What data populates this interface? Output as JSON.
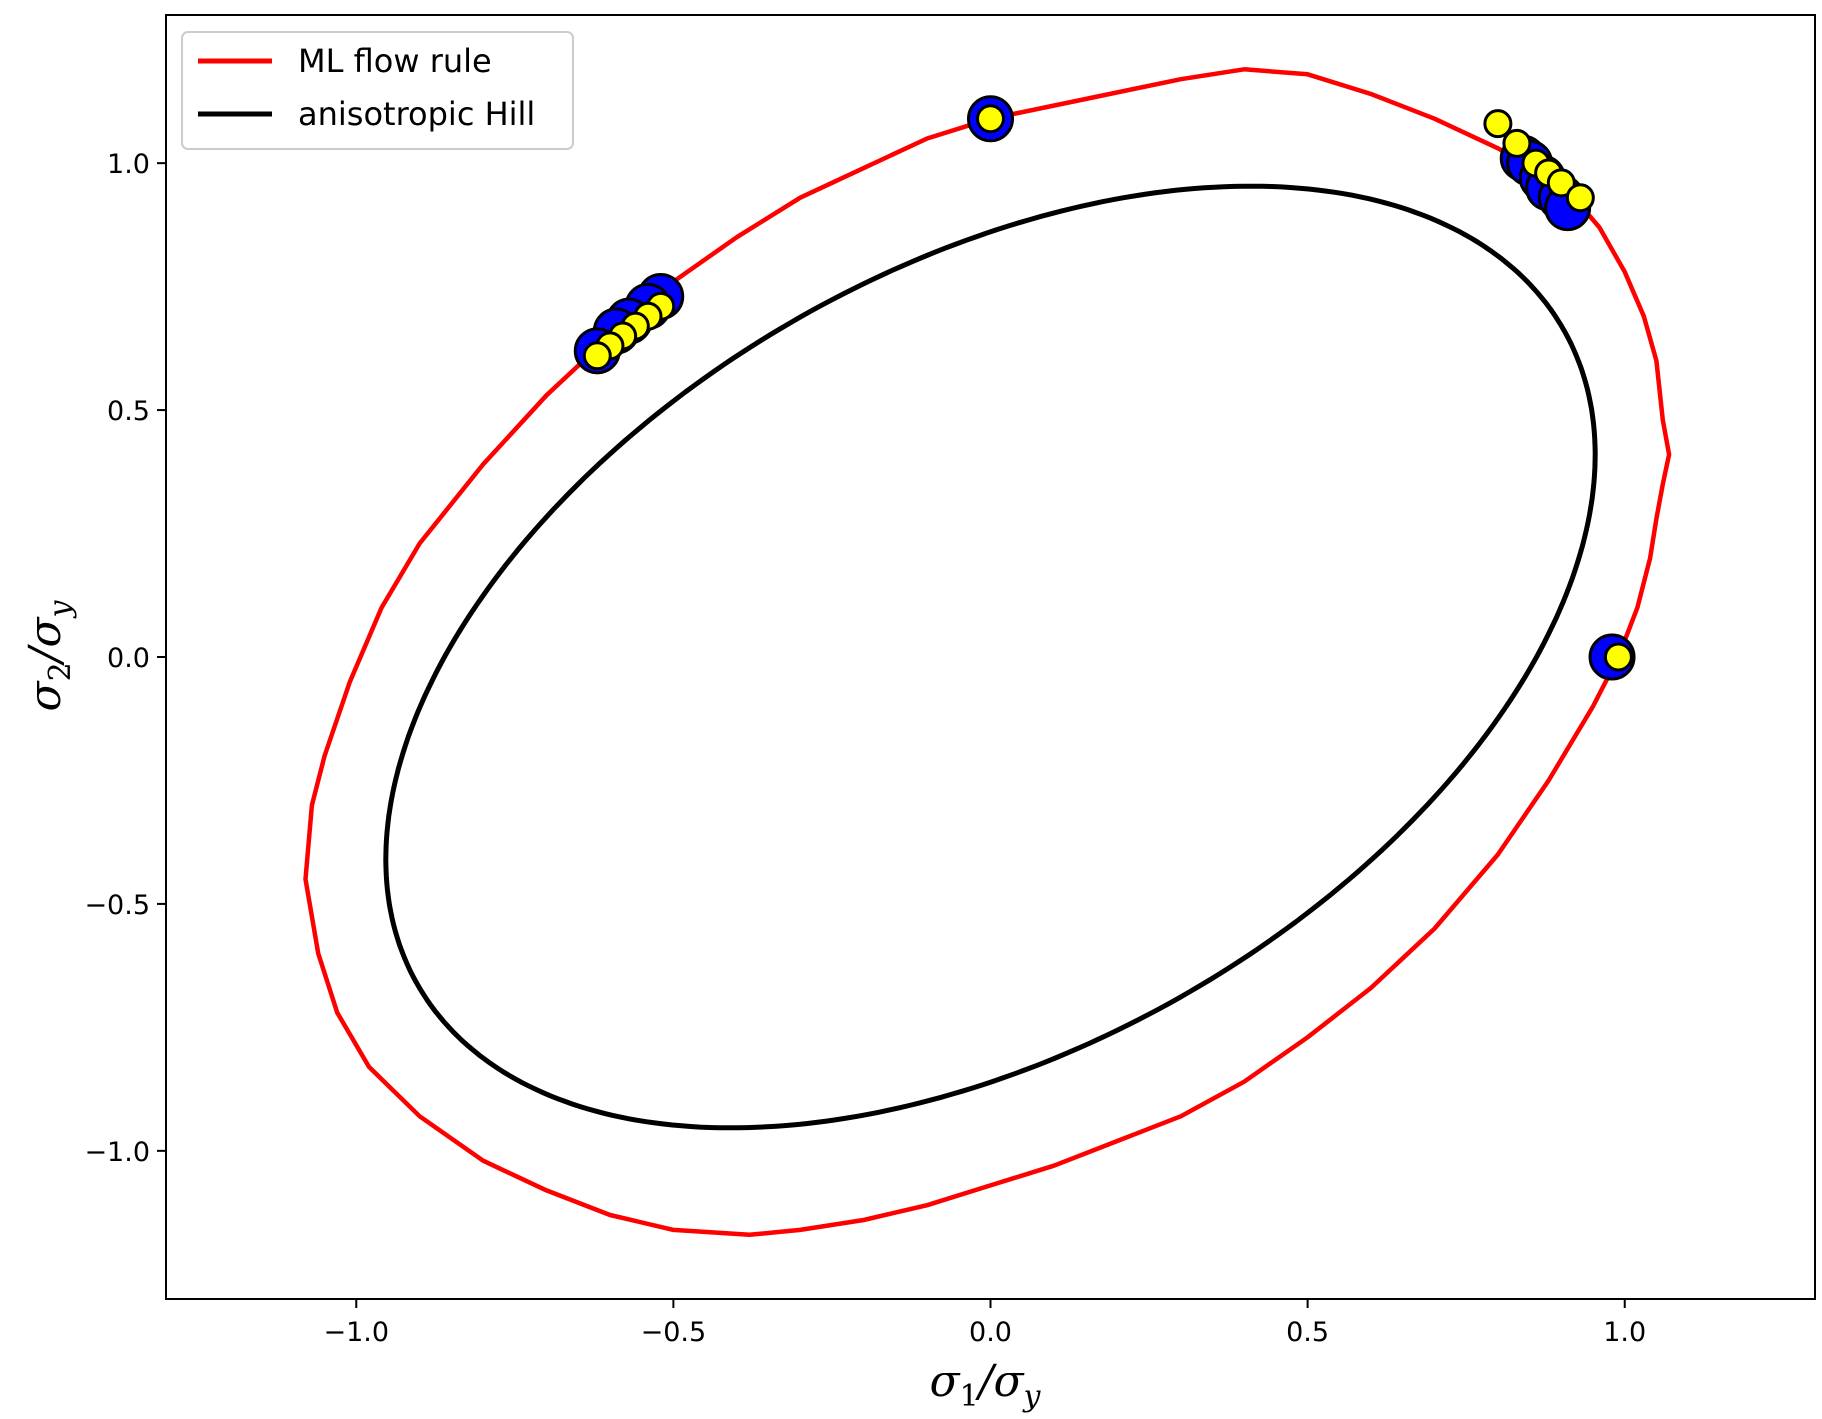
{
  "chart_data": {
    "type": "line",
    "xlabel": {
      "base": "σ",
      "sub": "1",
      "slash": "/σ",
      "sub2": "y"
    },
    "ylabel": {
      "base": "σ",
      "sub": "2",
      "slash": "/σ",
      "sub2": "y"
    },
    "xlim": [
      -1.3,
      1.3
    ],
    "ylim": [
      -1.3,
      1.3
    ],
    "xticks": [
      {
        "value": -1.0,
        "label": "−1.0"
      },
      {
        "value": -0.5,
        "label": "−0.5"
      },
      {
        "value": 0.0,
        "label": "0.0"
      },
      {
        "value": 0.5,
        "label": "0.5"
      },
      {
        "value": 1.0,
        "label": "1.0"
      }
    ],
    "yticks": [
      {
        "value": -1.0,
        "label": "−1.0"
      },
      {
        "value": -0.5,
        "label": "−0.5"
      },
      {
        "value": 0.0,
        "label": "0.0"
      },
      {
        "value": 0.5,
        "label": "0.5"
      },
      {
        "value": 1.0,
        "label": "1.0"
      }
    ],
    "legend_position": "top-left",
    "series": [
      {
        "name": "ML flow rule",
        "color": "#ff0000",
        "kind": "curve",
        "points": [
          [
            0.0,
            1.09
          ],
          [
            0.15,
            1.13
          ],
          [
            0.3,
            1.17
          ],
          [
            0.4,
            1.19
          ],
          [
            0.5,
            1.18
          ],
          [
            0.6,
            1.14
          ],
          [
            0.7,
            1.09
          ],
          [
            0.8,
            1.03
          ],
          [
            0.9,
            0.96
          ],
          [
            0.96,
            0.87
          ],
          [
            1.0,
            0.78
          ],
          [
            1.03,
            0.69
          ],
          [
            1.05,
            0.6
          ],
          [
            1.06,
            0.48
          ],
          [
            1.07,
            0.41
          ],
          [
            1.06,
            0.35
          ],
          [
            1.05,
            0.28
          ],
          [
            1.04,
            0.2
          ],
          [
            1.02,
            0.1
          ],
          [
            0.99,
            0.0
          ],
          [
            0.95,
            -0.1
          ],
          [
            0.88,
            -0.25
          ],
          [
            0.8,
            -0.4
          ],
          [
            0.7,
            -0.55
          ],
          [
            0.6,
            -0.67
          ],
          [
            0.5,
            -0.77
          ],
          [
            0.4,
            -0.86
          ],
          [
            0.3,
            -0.93
          ],
          [
            0.2,
            -0.98
          ],
          [
            0.1,
            -1.03
          ],
          [
            0.0,
            -1.07
          ],
          [
            -0.1,
            -1.11
          ],
          [
            -0.2,
            -1.14
          ],
          [
            -0.3,
            -1.16
          ],
          [
            -0.38,
            -1.17
          ],
          [
            -0.5,
            -1.16
          ],
          [
            -0.6,
            -1.13
          ],
          [
            -0.7,
            -1.08
          ],
          [
            -0.8,
            -1.02
          ],
          [
            -0.9,
            -0.93
          ],
          [
            -0.98,
            -0.83
          ],
          [
            -1.03,
            -0.72
          ],
          [
            -1.06,
            -0.6
          ],
          [
            -1.08,
            -0.45
          ],
          [
            -1.07,
            -0.3
          ],
          [
            -1.05,
            -0.2
          ],
          [
            -1.01,
            -0.05
          ],
          [
            -0.96,
            0.1
          ],
          [
            -0.9,
            0.23
          ],
          [
            -0.8,
            0.39
          ],
          [
            -0.7,
            0.53
          ],
          [
            -0.6,
            0.65
          ],
          [
            -0.5,
            0.76
          ],
          [
            -0.4,
            0.85
          ],
          [
            -0.3,
            0.93
          ],
          [
            -0.2,
            0.99
          ],
          [
            -0.1,
            1.05
          ],
          [
            0.0,
            1.09
          ]
        ]
      },
      {
        "name": "anisotropic Hill",
        "color": "#000000",
        "kind": "ellipse",
        "ellipse": {
          "a": 1.14,
          "b": 0.72,
          "angle_deg": 45
        }
      }
    ],
    "scatter": [
      {
        "color": "#0000ff",
        "size": "large",
        "points": [
          [
            0.0,
            1.09
          ],
          [
            0.98,
            0.0
          ],
          [
            -0.52,
            0.73
          ],
          [
            -0.54,
            0.71
          ],
          [
            -0.57,
            0.68
          ],
          [
            -0.59,
            0.66
          ],
          [
            -0.62,
            0.62
          ],
          [
            0.84,
            1.01
          ],
          [
            0.85,
            1.0
          ],
          [
            0.87,
            0.97
          ],
          [
            0.88,
            0.95
          ],
          [
            0.9,
            0.93
          ],
          [
            0.91,
            0.91
          ]
        ]
      },
      {
        "color": "#ffff00",
        "size": "small",
        "points": [
          [
            0.0,
            1.09
          ],
          [
            0.99,
            0.0
          ],
          [
            -0.52,
            0.71
          ],
          [
            -0.54,
            0.69
          ],
          [
            -0.56,
            0.67
          ],
          [
            -0.58,
            0.65
          ],
          [
            -0.6,
            0.63
          ],
          [
            -0.62,
            0.61
          ],
          [
            0.8,
            1.08
          ],
          [
            0.83,
            1.04
          ],
          [
            0.86,
            1.0
          ],
          [
            0.88,
            0.98
          ],
          [
            0.9,
            0.96
          ],
          [
            0.93,
            0.93
          ]
        ]
      }
    ]
  }
}
